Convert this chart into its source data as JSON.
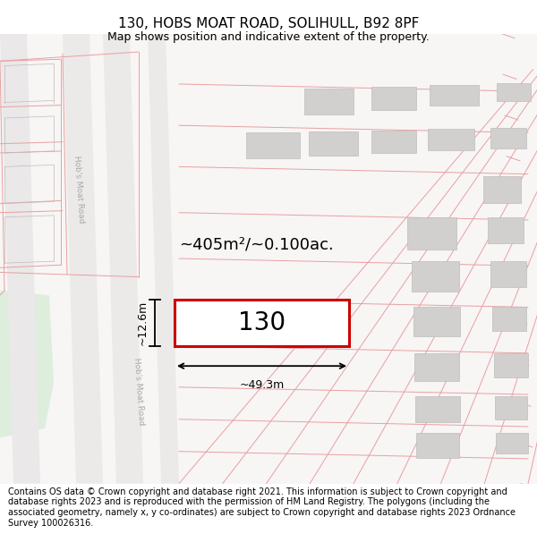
{
  "title": "130, HOBS MOAT ROAD, SOLIHULL, B92 8PF",
  "subtitle": "Map shows position and indicative extent of the property.",
  "footer": "Contains OS data © Crown copyright and database right 2021. This information is subject to Crown copyright and database rights 2023 and is reproduced with the permission of HM Land Registry. The polygons (including the associated geometry, namely x, y co-ordinates) are subject to Crown copyright and database rights 2023 Ordnance Survey 100026316.",
  "area_label": "~405m²/~0.100ac.",
  "property_number": "130",
  "width_label": "~49.3m",
  "height_label": "~12.6m",
  "map_bg": "#f7f4f4",
  "road_color": "#e6e4e4",
  "plot_line_color": "#cc0000",
  "red_line_color": "#e8a0a0",
  "gray_block_color": "#d2cfcf",
  "gray_block_edge": "#c0bcbc",
  "title_fontsize": 11,
  "subtitle_fontsize": 9,
  "footer_fontsize": 7,
  "road_label_color": "#aaaaaa"
}
